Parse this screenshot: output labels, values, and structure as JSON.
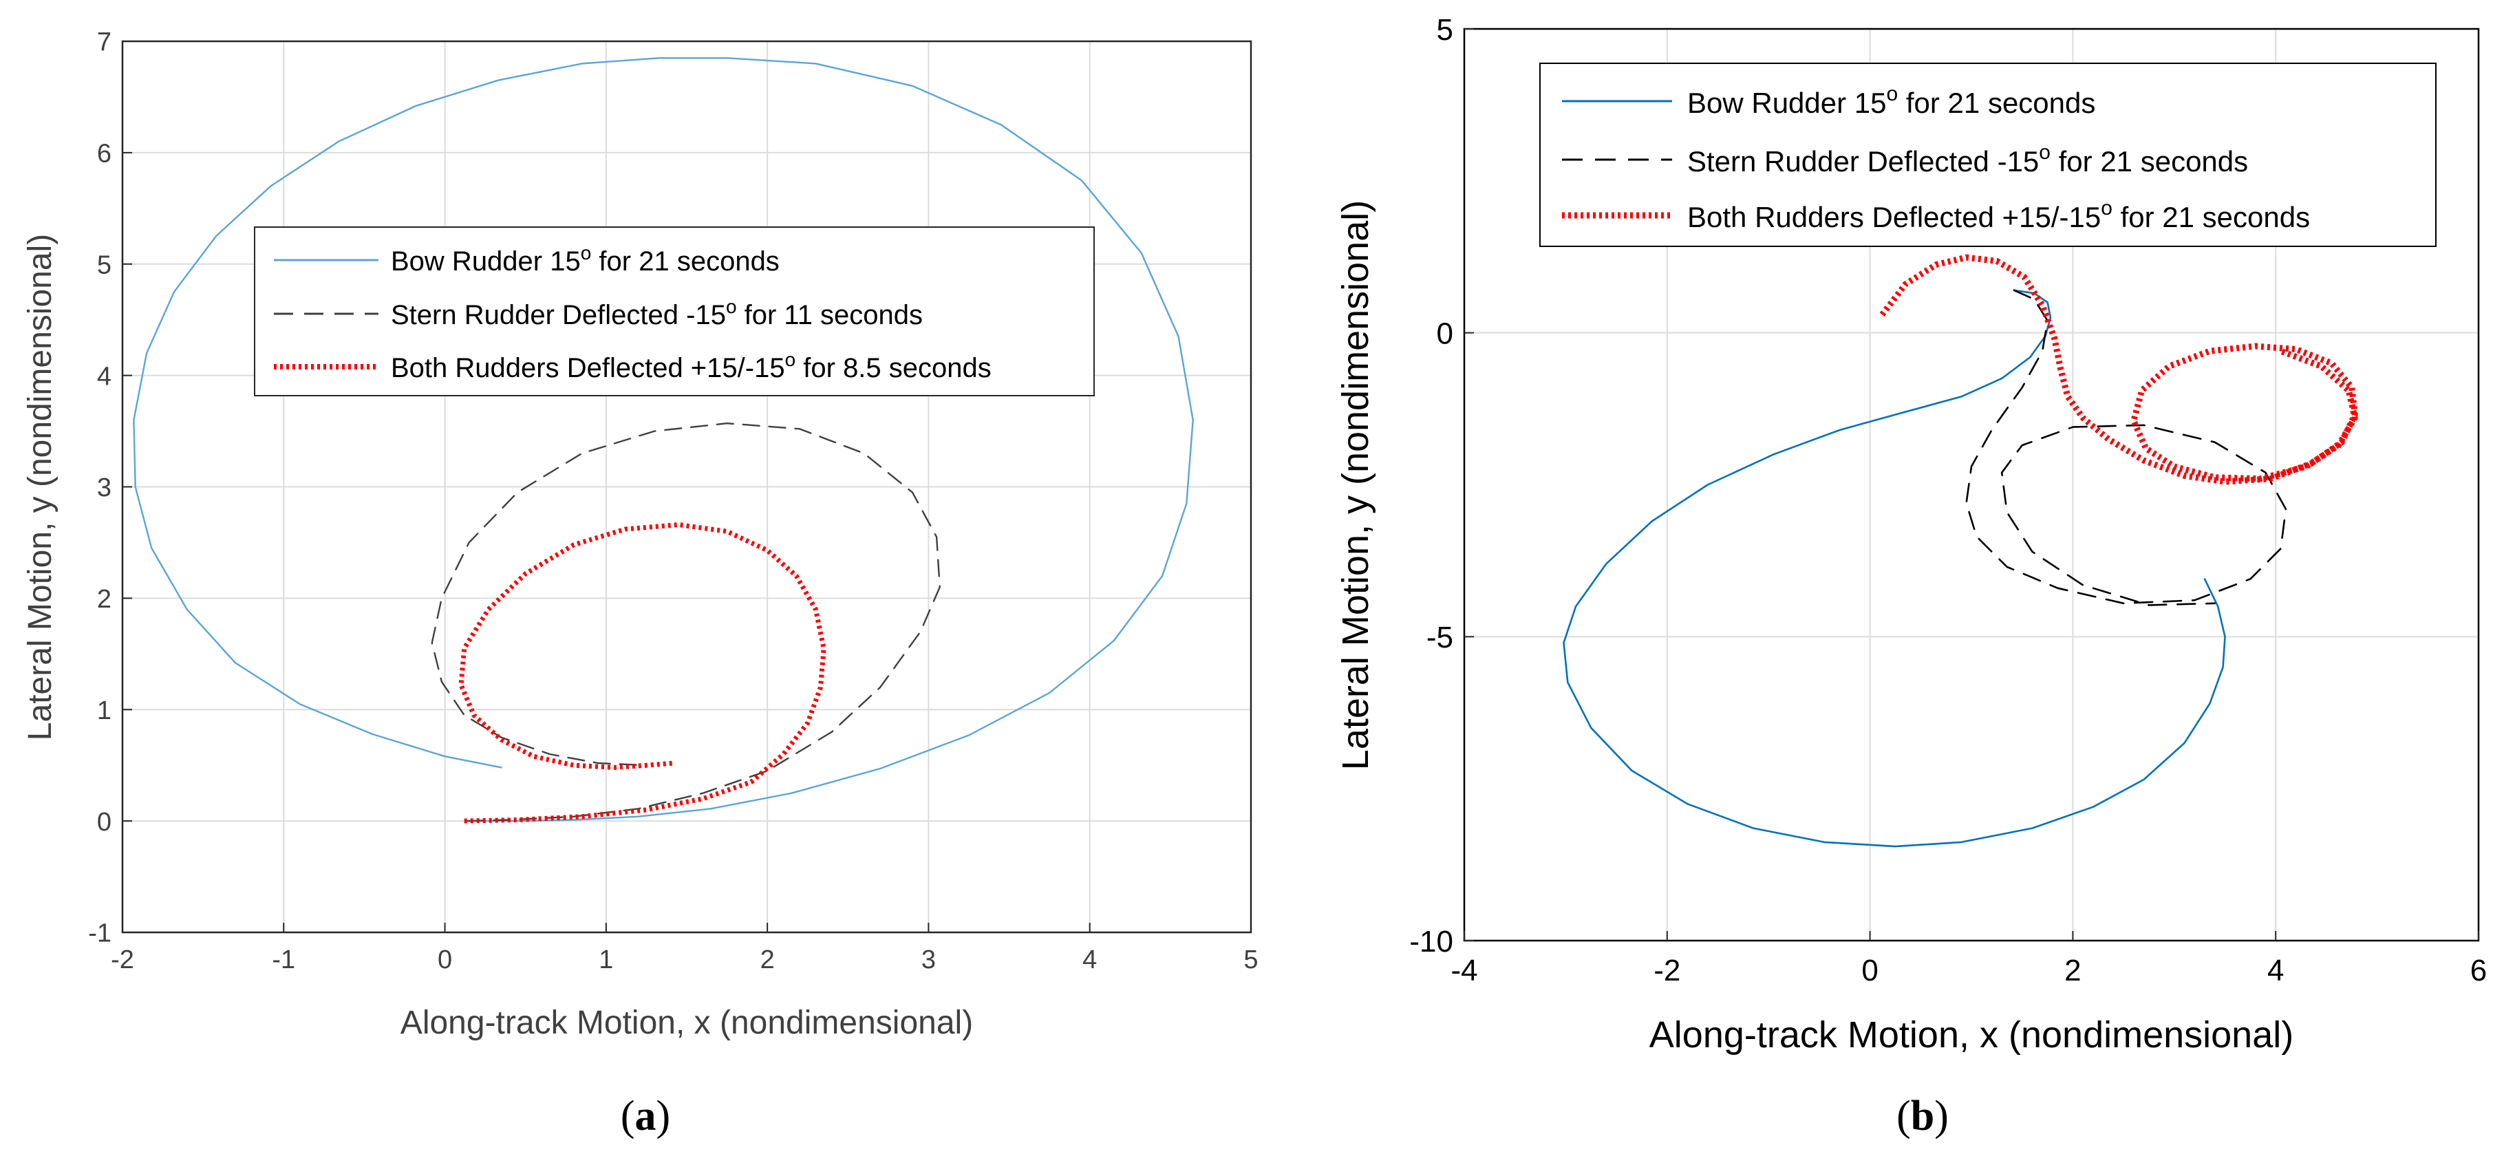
{
  "chart_data": [
    {
      "type": "line",
      "panel_label": "a",
      "xlabel": "Along-track Motion, x (nondimensional)",
      "ylabel": "Lateral Motion, y (nondimensional)",
      "xlim": [
        -2,
        5
      ],
      "ylim": [
        -1,
        7
      ],
      "xticks": [
        -2,
        -1,
        0,
        1,
        2,
        3,
        4,
        5
      ],
      "yticks": [
        -1,
        0,
        1,
        2,
        3,
        4,
        5,
        6,
        7
      ],
      "grid": true,
      "legend_position": "upper-center",
      "series": [
        {
          "name": "Bow Rudder 15° for 21 seconds",
          "label_main": "Bow Rudder 15",
          "label_sup": "o",
          "label_tail": " for 21 seconds",
          "color": "#5aa5d8",
          "style": "solid",
          "x": [
            0.35,
            0.0,
            -0.45,
            -0.9,
            -1.3,
            -1.6,
            -1.82,
            -1.92,
            -1.93,
            -1.85,
            -1.68,
            -1.42,
            -1.08,
            -0.66,
            -0.18,
            0.33,
            0.85,
            1.33,
            1.75,
            2.3,
            2.9,
            3.45,
            3.95,
            4.32,
            4.55,
            4.64,
            4.6,
            4.45,
            4.15,
            3.75,
            3.25,
            2.7,
            2.15,
            1.65,
            1.2,
            0.8,
            0.5,
            0.28,
            0.14
          ],
          "y": [
            0.48,
            0.58,
            0.78,
            1.05,
            1.42,
            1.9,
            2.45,
            3.0,
            3.6,
            4.2,
            4.75,
            5.25,
            5.7,
            6.1,
            6.42,
            6.65,
            6.8,
            6.85,
            6.85,
            6.8,
            6.6,
            6.25,
            5.75,
            5.1,
            4.35,
            3.6,
            2.85,
            2.2,
            1.62,
            1.15,
            0.77,
            0.47,
            0.25,
            0.11,
            0.04,
            0.01,
            0.0,
            0.0,
            0.0
          ]
        },
        {
          "name": "Stern Rudder Deflected -15° for 11 seconds",
          "label_main": "Stern Rudder Deflected -15",
          "label_sup": "o",
          "label_tail": " for 11 seconds",
          "color": "#404040",
          "style": "dashed",
          "x": [
            0.14,
            0.4,
            0.8,
            1.2,
            1.6,
            2.0,
            2.4,
            2.7,
            2.95,
            3.07,
            3.05,
            2.9,
            2.6,
            2.2,
            1.75,
            1.3,
            0.85,
            0.45,
            0.15,
            -0.02,
            -0.08,
            -0.02,
            0.12,
            0.35,
            0.65,
            0.95,
            1.25
          ],
          "y": [
            0.0,
            0.01,
            0.04,
            0.11,
            0.25,
            0.45,
            0.8,
            1.2,
            1.7,
            2.1,
            2.55,
            2.95,
            3.3,
            3.52,
            3.57,
            3.5,
            3.3,
            2.95,
            2.5,
            2.0,
            1.6,
            1.25,
            0.95,
            0.75,
            0.6,
            0.52,
            0.5
          ]
        },
        {
          "name": "Both Rudders Deflected +15/-15° for 8.5 seconds",
          "label_main": "Both Rudders Deflected +15/-15",
          "label_sup": "o",
          "label_tail": " for 8.5 seconds",
          "color": "#ff0000",
          "style": "dotted",
          "x": [
            0.12,
            0.45,
            0.85,
            1.25,
            1.6,
            1.9,
            2.1,
            2.25,
            2.33,
            2.35,
            2.3,
            2.18,
            2.0,
            1.75,
            1.45,
            1.12,
            0.8,
            0.5,
            0.27,
            0.12,
            0.1,
            0.18,
            0.35,
            0.55,
            0.8,
            1.05,
            1.25,
            1.42
          ],
          "y": [
            0.0,
            0.01,
            0.04,
            0.1,
            0.2,
            0.35,
            0.6,
            0.88,
            1.2,
            1.55,
            1.9,
            2.2,
            2.43,
            2.6,
            2.66,
            2.62,
            2.48,
            2.22,
            1.9,
            1.55,
            1.22,
            0.95,
            0.73,
            0.58,
            0.5,
            0.48,
            0.5,
            0.52
          ]
        }
      ]
    },
    {
      "type": "line",
      "panel_label": "b",
      "xlabel": "Along-track Motion, x (nondimensional)",
      "ylabel": "Lateral Motion, y (nondimensional)",
      "xlim": [
        -4,
        6
      ],
      "ylim": [
        -10,
        5
      ],
      "xticks": [
        -4,
        -2,
        0,
        2,
        4,
        6
      ],
      "yticks": [
        -10,
        -5,
        0,
        5
      ],
      "grid": true,
      "legend_position": "top-left",
      "series": [
        {
          "name": "Bow Rudder 15° for 21 seconds",
          "label_main": "Bow Rudder 15",
          "label_sup": "o",
          "label_tail": " for 21 seconds",
          "color": "#0072bd",
          "style": "solid",
          "x": [
            3.3,
            3.43,
            3.5,
            3.48,
            3.35,
            3.1,
            2.7,
            2.2,
            1.6,
            0.9,
            0.25,
            -0.45,
            -1.15,
            -1.8,
            -2.35,
            -2.75,
            -2.98,
            -3.02,
            -2.9,
            -2.6,
            -2.15,
            -1.6,
            -0.95,
            -0.3,
            0.35,
            0.9,
            1.3,
            1.58,
            1.73,
            1.78,
            1.75,
            1.62,
            1.42
          ],
          "y": [
            -4.05,
            -4.5,
            -5.0,
            -5.5,
            -6.1,
            -6.75,
            -7.35,
            -7.8,
            -8.15,
            -8.38,
            -8.45,
            -8.38,
            -8.15,
            -7.75,
            -7.2,
            -6.5,
            -5.75,
            -5.1,
            -4.5,
            -3.8,
            -3.1,
            -2.5,
            -2.0,
            -1.6,
            -1.3,
            -1.05,
            -0.75,
            -0.4,
            -0.05,
            0.25,
            0.5,
            0.65,
            0.7
          ]
        },
        {
          "name": "Stern Rudder Deflected -15° for 21 seconds",
          "label_main": "Stern Rudder Deflected -15",
          "label_sup": "o",
          "label_tail": " for 21 seconds",
          "color": "#000000",
          "style": "dashed",
          "x": [
            1.42,
            1.62,
            1.75,
            1.7,
            1.5,
            1.2,
            1.0,
            0.95,
            1.05,
            1.35,
            1.85,
            2.5,
            3.2,
            3.75,
            4.05,
            4.1,
            3.9,
            3.4,
            2.7,
            2.0,
            1.5,
            1.3,
            1.35,
            1.6,
            2.1,
            2.75,
            3.4
          ],
          "y": [
            0.7,
            0.55,
            0.2,
            -0.3,
            -0.9,
            -1.6,
            -2.2,
            -2.8,
            -3.35,
            -3.85,
            -4.2,
            -4.45,
            -4.4,
            -4.05,
            -3.55,
            -2.9,
            -2.3,
            -1.8,
            -1.52,
            -1.55,
            -1.85,
            -2.3,
            -2.95,
            -3.6,
            -4.15,
            -4.48,
            -4.45
          ]
        },
        {
          "name": "Both Rudders Deflected +15/-15° for 21 seconds",
          "label_main": "Both Rudders Deflected +15/-15",
          "label_sup": "o",
          "label_tail": " for 21 seconds",
          "color": "#ff0000",
          "style": "dotted",
          "x": [
            0.12,
            0.35,
            0.65,
            0.95,
            1.25,
            1.52,
            1.7,
            1.82,
            1.88,
            1.95,
            2.1,
            2.35,
            2.7,
            3.1,
            3.5,
            3.95,
            4.35,
            4.65,
            4.78,
            4.75,
            4.55,
            4.2,
            3.8,
            3.35,
            2.95,
            2.68,
            2.6,
            2.72,
            3.0,
            3.4,
            3.85,
            4.3,
            4.62,
            4.78,
            4.72,
            4.45,
            4.05
          ],
          "y": [
            0.3,
            0.8,
            1.12,
            1.24,
            1.18,
            0.92,
            0.45,
            -0.1,
            -0.6,
            -1.05,
            -1.4,
            -1.75,
            -2.1,
            -2.35,
            -2.45,
            -2.4,
            -2.15,
            -1.8,
            -1.35,
            -0.9,
            -0.5,
            -0.27,
            -0.22,
            -0.3,
            -0.55,
            -0.95,
            -1.45,
            -1.9,
            -2.2,
            -2.38,
            -2.4,
            -2.2,
            -1.85,
            -1.4,
            -0.95,
            -0.55,
            -0.3
          ]
        }
      ]
    }
  ]
}
